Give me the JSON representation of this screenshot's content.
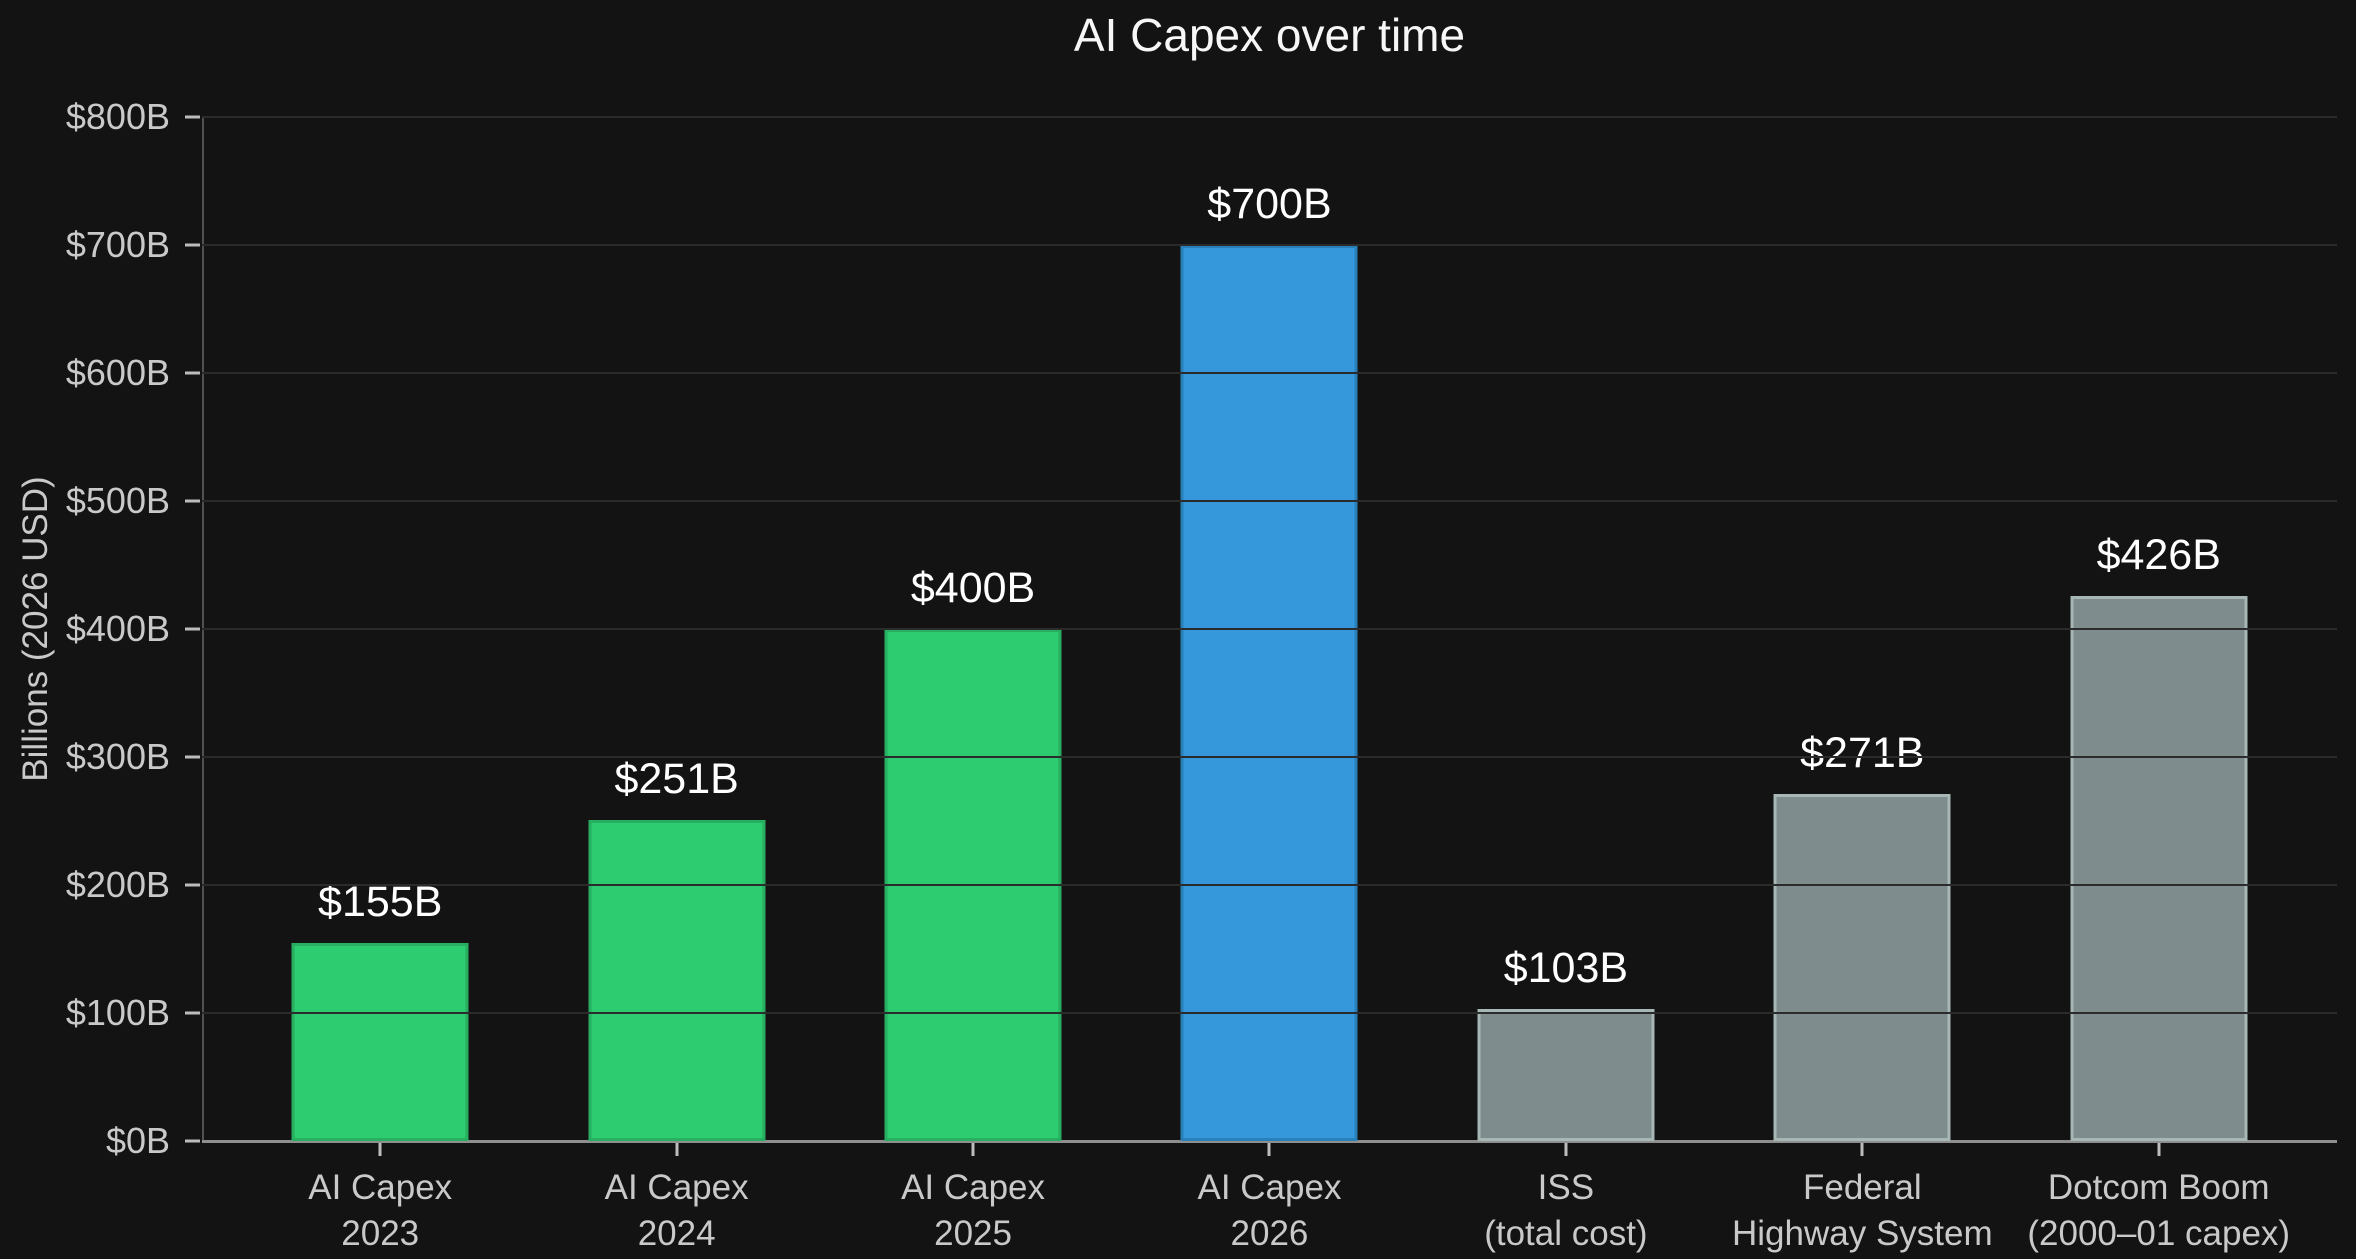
{
  "figure": {
    "background_color": "#131313",
    "text_color": "#c9c9c9",
    "grid_color": "#2b2b2b",
    "value_label_color": "#ffffff"
  },
  "chart_data": {
    "type": "bar",
    "title": "AI Capex over time",
    "xlabel": "",
    "ylabel": "Billions (2026 USD)",
    "ylim": [
      0,
      800
    ],
    "grid": true,
    "legend": false,
    "y_ticks": [
      {
        "value": 0,
        "label": "$0B"
      },
      {
        "value": 100,
        "label": "$100B"
      },
      {
        "value": 200,
        "label": "$200B"
      },
      {
        "value": 300,
        "label": "$300B"
      },
      {
        "value": 400,
        "label": "$400B"
      },
      {
        "value": 500,
        "label": "$500B"
      },
      {
        "value": 600,
        "label": "$600B"
      },
      {
        "value": 700,
        "label": "$700B"
      },
      {
        "value": 800,
        "label": "$800B"
      }
    ],
    "palette": {
      "ai_capex_green_fill": "#2ecc71",
      "ai_capex_green_edge": "#27ae60",
      "highlight_blue_fill": "#3498db",
      "highlight_blue_edge": "#2980b9",
      "benchmark_gray_fill": "#7f8c8d",
      "benchmark_gray_edge": "#a6b7b5"
    },
    "bars": [
      {
        "category_lines": [
          "AI Capex",
          "2023"
        ],
        "value": 155,
        "value_label": "$155B",
        "fill": "#2ecc71",
        "edge": "#27ae60"
      },
      {
        "category_lines": [
          "AI Capex",
          "2024"
        ],
        "value": 251,
        "value_label": "$251B",
        "fill": "#2ecc71",
        "edge": "#27ae60"
      },
      {
        "category_lines": [
          "AI Capex",
          "2025"
        ],
        "value": 400,
        "value_label": "$400B",
        "fill": "#2ecc71",
        "edge": "#27ae60"
      },
      {
        "category_lines": [
          "AI Capex",
          "2026"
        ],
        "value": 700,
        "value_label": "$700B",
        "fill": "#3498db",
        "edge": "#2980b9"
      },
      {
        "category_lines": [
          "ISS",
          "(total cost)"
        ],
        "value": 103,
        "value_label": "$103B",
        "fill": "#7f8c8d",
        "edge": "#a6b7b5"
      },
      {
        "category_lines": [
          "Federal",
          "Highway System"
        ],
        "value": 271,
        "value_label": "$271B",
        "fill": "#7f8c8d",
        "edge": "#a6b7b5"
      },
      {
        "category_lines": [
          "Dotcom Boom",
          "(2000–01 capex)"
        ],
        "value": 426,
        "value_label": "$426B",
        "fill": "#7f8c8d",
        "edge": "#a6b7b5"
      }
    ]
  }
}
